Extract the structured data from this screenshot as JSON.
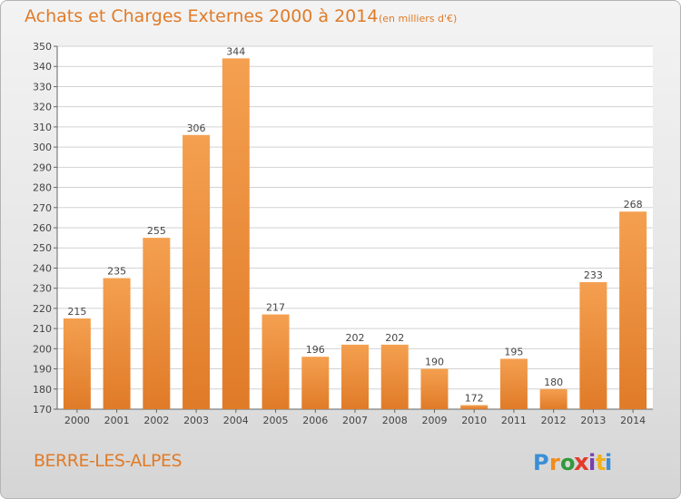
{
  "chart_data": {
    "type": "bar",
    "title": "Achats et Charges Externes 2000 à 2014",
    "subtitle": "(en milliers d'€)",
    "categories": [
      "2000",
      "2001",
      "2002",
      "2003",
      "2004",
      "2005",
      "2006",
      "2007",
      "2008",
      "2009",
      "2010",
      "2011",
      "2012",
      "2013",
      "2014"
    ],
    "values": [
      215,
      235,
      255,
      306,
      344,
      217,
      196,
      202,
      202,
      190,
      172,
      195,
      180,
      233,
      268
    ],
    "ylim": [
      170,
      350
    ],
    "ytick_step": 10,
    "grid": true,
    "bar_color_top": "#f4a050",
    "bar_color_bottom": "#e07b28",
    "xlabel": "",
    "ylabel": ""
  },
  "commune": "BERRE-LES-ALPES",
  "logo": {
    "text": "Proxiti",
    "letters": [
      "P",
      "r",
      "o",
      "x",
      "i",
      "t",
      "i"
    ],
    "letter_colors": [
      "#3a8fd6",
      "#f28c1a",
      "#2e9b3a",
      "#e23b2e",
      "#7a3fb0",
      "#f2b01a",
      "#3a8fd6"
    ]
  }
}
